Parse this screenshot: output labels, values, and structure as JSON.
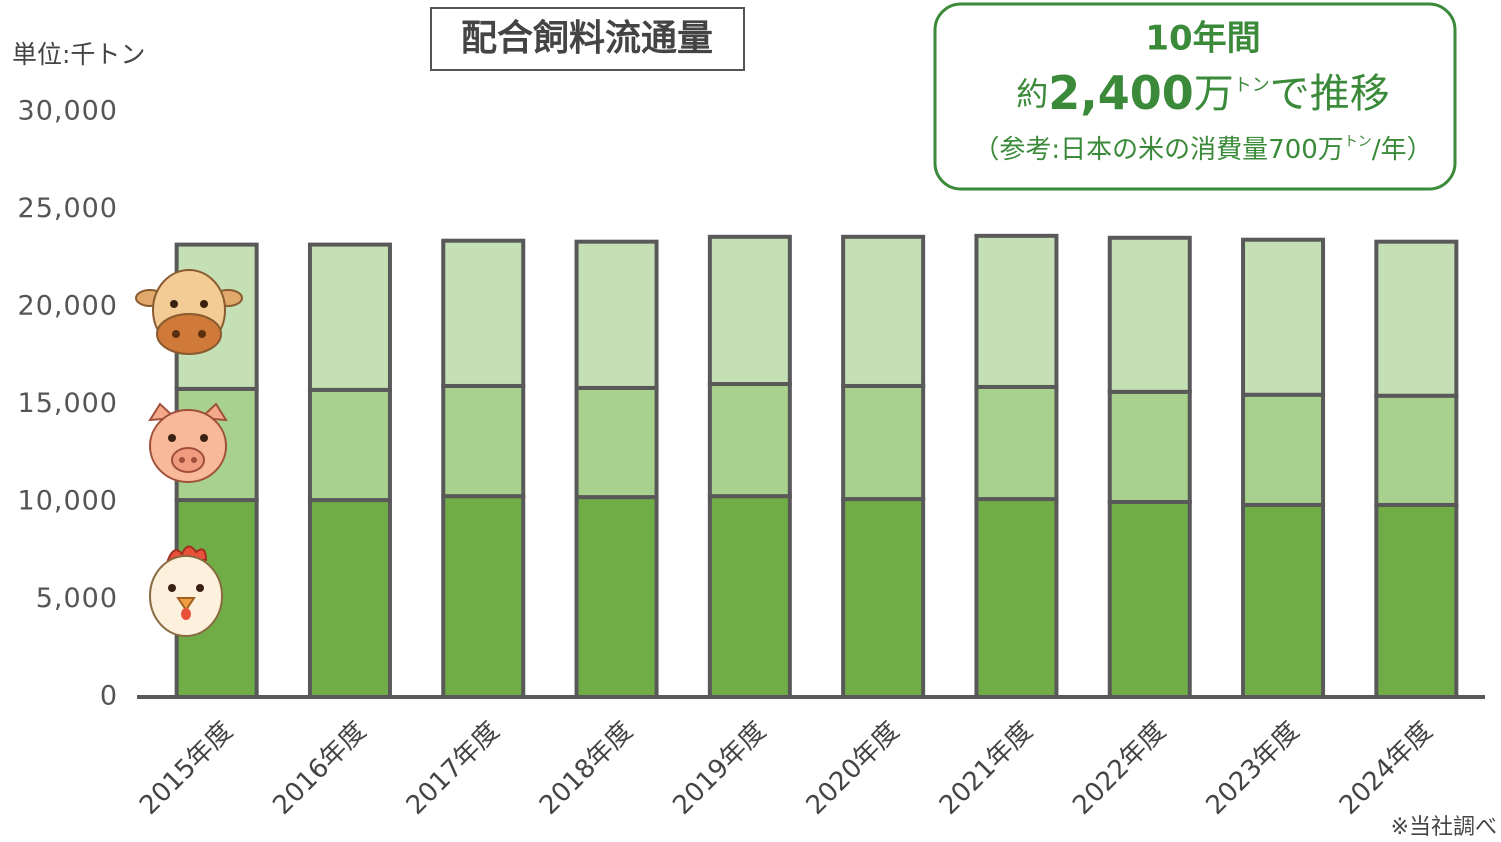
{
  "chart_data": {
    "type": "stacked_bar",
    "title": "配合飼料流通量",
    "unit": "単位:千トン",
    "source": "※当社調べ",
    "callout": {
      "line1": "10年間",
      "prefix": "約",
      "amount": "2,400",
      "unit": "万",
      "ton": "トン",
      "suffix": "で推移",
      "note": "（参考:日本の米の消費量700万",
      "note_ton": "トン",
      "note_end": "/年）"
    },
    "categories": [
      "2015年度",
      "2016年度",
      "2017年度",
      "2018年度",
      "2019年度",
      "2020年度",
      "2021年度",
      "2022年度",
      "2023年度",
      "2024年度"
    ],
    "series": [
      {
        "color": "#70ad47",
        "values": [
          10100,
          10100,
          10300,
          10250,
          10300,
          10150,
          10150,
          10000,
          9850,
          9850
        ]
      },
      {
        "color": "#a9d18e",
        "values": [
          5700,
          5650,
          5650,
          5600,
          5750,
          5800,
          5750,
          5650,
          5650,
          5600
        ]
      },
      {
        "color": "#c5e0b4",
        "values": [
          7400,
          7450,
          7450,
          7500,
          7550,
          7650,
          7750,
          7900,
          7950,
          7900
        ]
      }
    ],
    "ylim": [
      0,
      30000
    ],
    "yticks": [
      0,
      {
        "value": 5000,
        "label": "5,000"
      },
      {
        "value": 10000,
        "label": "10,000"
      },
      {
        "value": 15000,
        "label": "15,000"
      },
      {
        "value": 20000,
        "label": "20,000"
      },
      {
        "value": 25000,
        "label": "25,000"
      },
      {
        "value": 30000,
        "label": "30,000"
      }
    ],
    "grid": false
  }
}
